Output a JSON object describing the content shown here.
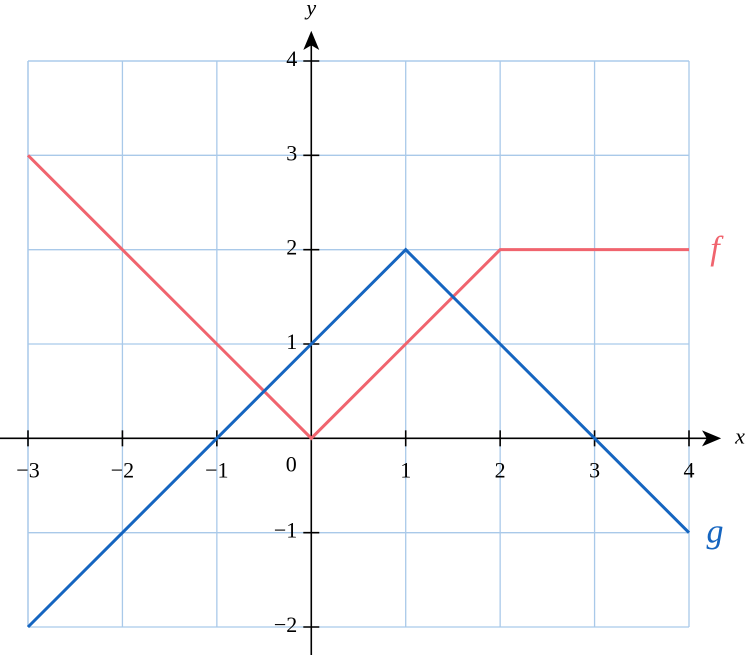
{
  "chart_data": {
    "type": "line",
    "x_label": "x",
    "y_label": "y",
    "origin_label": "0",
    "x": [
      -3,
      -2,
      -1,
      0,
      1,
      2,
      3,
      4
    ],
    "series": [
      {
        "name": "f",
        "color": "#f0646e",
        "values": [
          3,
          2,
          1,
          0,
          1,
          2,
          2,
          2
        ]
      },
      {
        "name": "g",
        "color": "#1565c0",
        "values": [
          -2,
          -1,
          0,
          1,
          2,
          1,
          0,
          -1
        ]
      }
    ],
    "xlim": [
      -3,
      4
    ],
    "ylim": [
      -2,
      4
    ],
    "xticks": [
      {
        "value": -3,
        "label": "−3"
      },
      {
        "value": -2,
        "label": "−2"
      },
      {
        "value": -1,
        "label": "−1"
      },
      1,
      2,
      3,
      4
    ],
    "yticks": [
      {
        "value": -2,
        "label": "−2"
      },
      {
        "value": -1,
        "label": "−1"
      },
      1,
      2,
      3,
      4
    ],
    "grid": true,
    "grid_color": "#a9c9e9"
  }
}
